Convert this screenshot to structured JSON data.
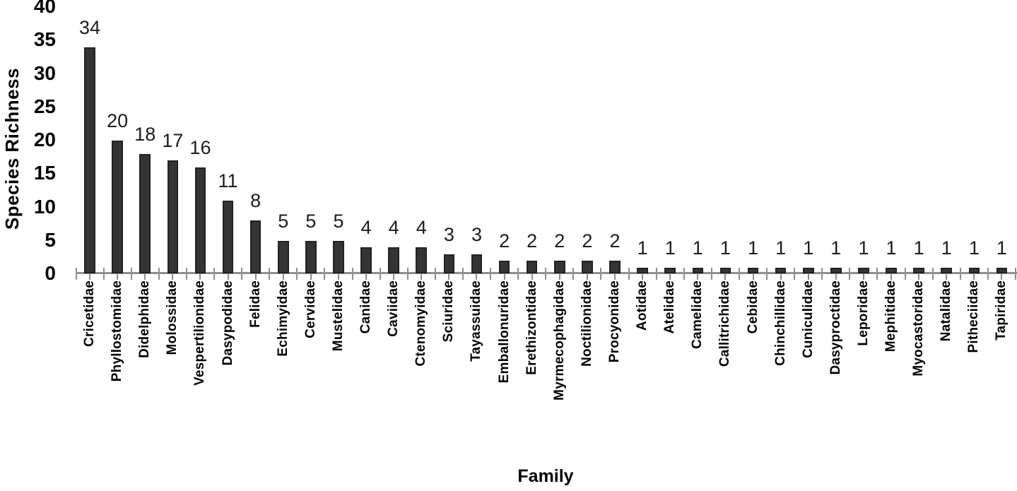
{
  "chart_data": {
    "type": "bar",
    "title": "",
    "xlabel": "Family",
    "ylabel": "Species Richness",
    "ylim": [
      0,
      40
    ],
    "yticks": [
      0,
      5,
      10,
      15,
      20,
      25,
      30,
      35,
      40
    ],
    "grid": false,
    "legend_position": "none",
    "data_labels_shown": true,
    "bar_color": "#343434",
    "bar_border_color": "#222222",
    "axis_color": "#8f8f8f",
    "label_color": "#1c1c1c",
    "categories": [
      "Cricetidae",
      "Phyllostomidae",
      "Didelphidae",
      "Molossidae",
      "Vespertilionidae",
      "Dasypodidae",
      "Felidae",
      "Echimyidae",
      "Cervidae",
      "Mustelidae",
      "Canidae",
      "Caviidae",
      "Ctenomyidae",
      "Sciuridae",
      "Tayassuidae",
      "Emballonuridae",
      "Erethizontidae",
      "Myrmecophagidae",
      "Noctilionidae",
      "Procyonidae",
      "Aotidae",
      "Atelidae",
      "Camelidae",
      "Callitrichidae",
      "Cebidae",
      "Chinchillidae",
      "Cuniculidae",
      "Dasyproctidae",
      "Leporidae",
      "Mephitidae",
      "Myocastoridae",
      "Natalidae",
      "Pitheciidae",
      "Tapiridae"
    ],
    "values": [
      34,
      20,
      18,
      17,
      16,
      11,
      8,
      5,
      5,
      5,
      4,
      4,
      4,
      3,
      3,
      2,
      2,
      2,
      2,
      2,
      1,
      1,
      1,
      1,
      1,
      1,
      1,
      1,
      1,
      1,
      1,
      1,
      1,
      1
    ]
  }
}
